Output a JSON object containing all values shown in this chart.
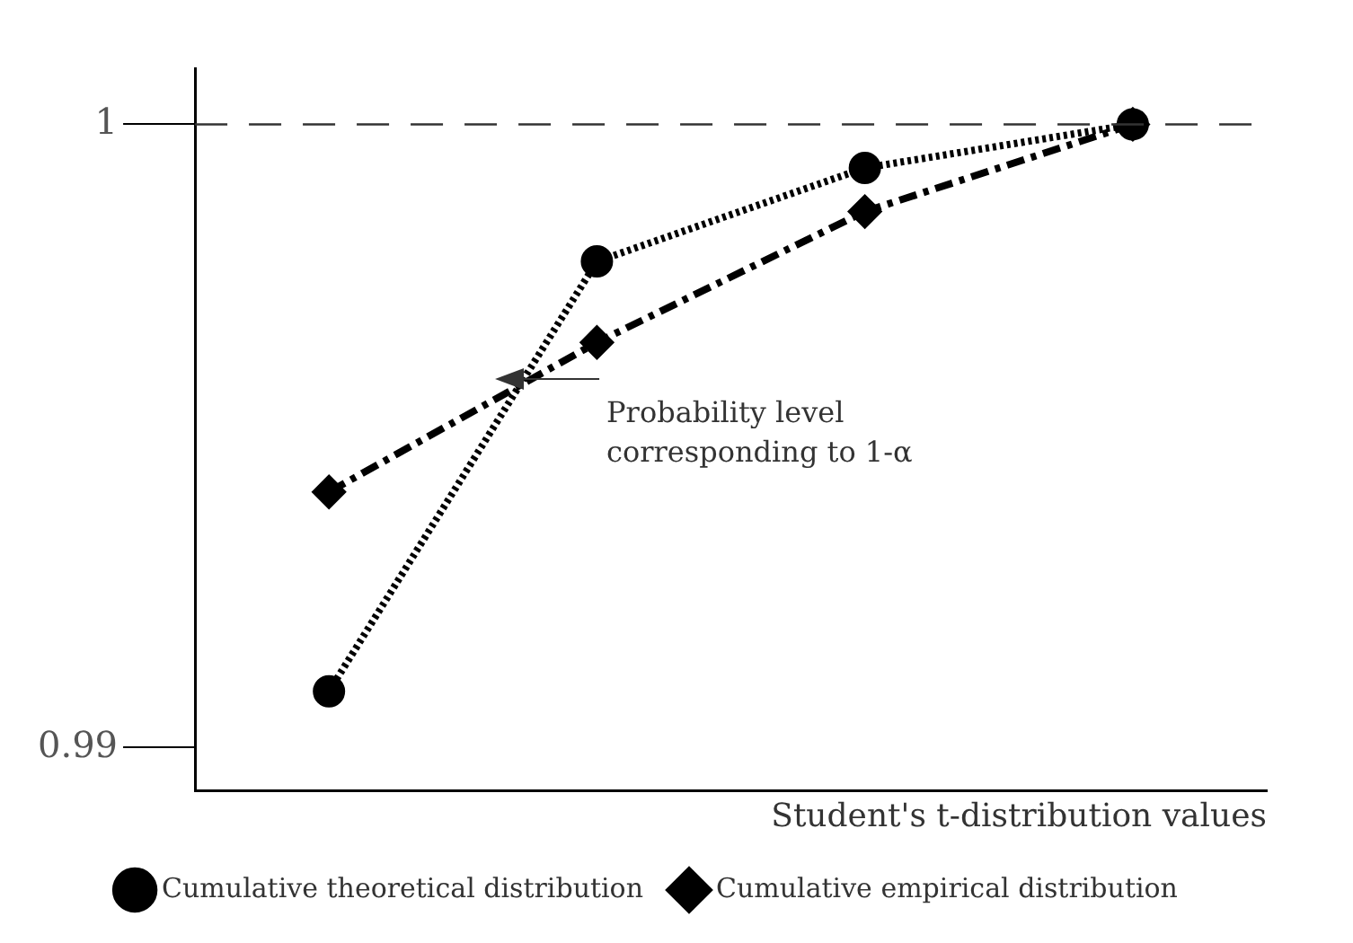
{
  "chart_data": {
    "type": "line",
    "xlabel": "Student's t-distribution values",
    "categories": [
      null,
      null,
      null,
      null
    ],
    "series": [
      {
        "name": "Cumulative theoretical distribution",
        "color": "#000000",
        "marker": "circle",
        "line_style": "dotted",
        "values": [
          0.9909,
          0.9978,
          0.9993,
          1
        ]
      },
      {
        "name": "Cumulative empirical distribution",
        "color": "#000000",
        "marker": "diamond",
        "line_style": "dashed",
        "values": [
          0.9941,
          0.9965,
          0.9986,
          1
        ]
      }
    ],
    "ylim": [
      0.9893,
      1.0009
    ],
    "yticks": [
      0.99,
      1
    ],
    "tick_labels": "y",
    "grid": false,
    "legend": "bottom",
    "ref_lines": [
      {
        "axis": "y",
        "value": 1,
        "color": "#333333",
        "line_style": "dashed"
      }
    ],
    "annotations": [
      "Probability level\ncorresponding to 1-α"
    ]
  }
}
